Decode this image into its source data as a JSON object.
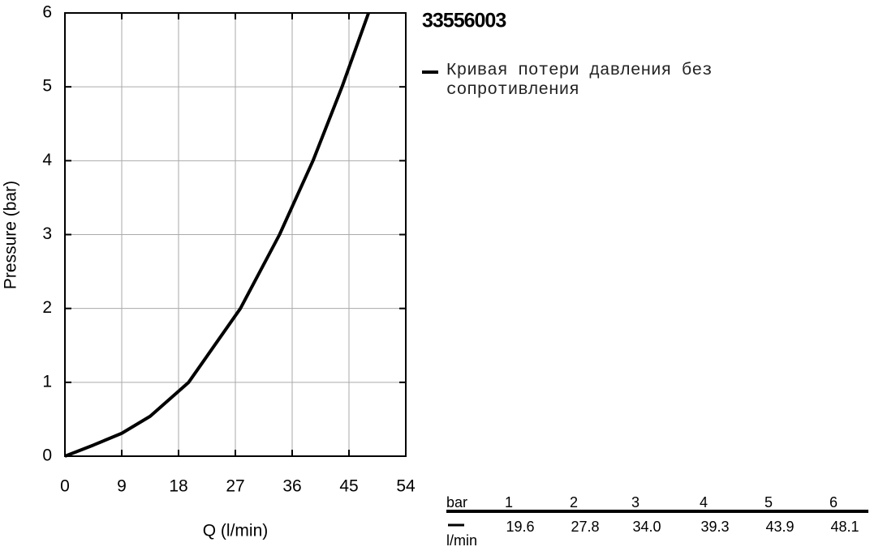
{
  "chart_data": {
    "type": "line",
    "title": "33556003",
    "x_label": "Q (l/min)",
    "y_label": "Pressure (bar)",
    "x": [
      0,
      4.5,
      9,
      13.5,
      19.6,
      27.8,
      34.0,
      39.3,
      43.9,
      48.1
    ],
    "series": [
      {
        "name": "Кривая потери давления без сопротивления",
        "color": "#000000",
        "values": [
          0,
          0.15,
          0.31,
          0.54,
          1,
          2,
          3,
          4,
          5,
          6
        ]
      }
    ],
    "xlim": [
      0,
      54
    ],
    "xticks": [
      0,
      9,
      18,
      27,
      36,
      45,
      54
    ],
    "ylim": [
      0,
      6
    ],
    "yticks": [
      0,
      1,
      2,
      3,
      4,
      5,
      6
    ],
    "grid": true
  },
  "table": {
    "header": "bar",
    "columns": [
      "1",
      "2",
      "3",
      "4",
      "5",
      "6"
    ],
    "row_label": "l/min",
    "values": [
      "19.6",
      "27.8",
      "34.0",
      "39.3",
      "43.9",
      "48.1"
    ]
  }
}
